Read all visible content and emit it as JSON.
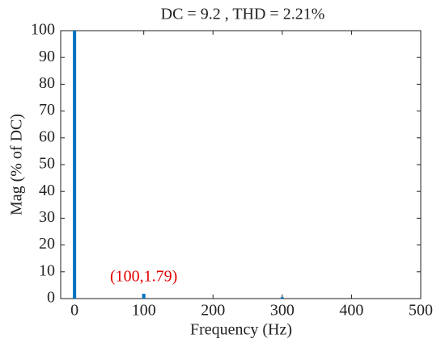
{
  "chart_data": {
    "type": "bar",
    "title": "DC = 9.2 , THD = 2.21%",
    "x_label": "Frequency (Hz)",
    "y_label": "Mag (% of DC)",
    "x": [
      0,
      100,
      300
    ],
    "values": [
      100,
      1.79,
      0.5
    ],
    "color": "#0072bd",
    "xlim": [
      -20,
      500
    ],
    "xticks": [
      0,
      100,
      200,
      300,
      400,
      500
    ],
    "ylim": [
      0,
      100
    ],
    "yticks": [
      0,
      10,
      20,
      30,
      40,
      50,
      60,
      70,
      80,
      90,
      100
    ],
    "annotation": "(100,1.79)",
    "annotation_color": "#e00000",
    "grid": false
  }
}
